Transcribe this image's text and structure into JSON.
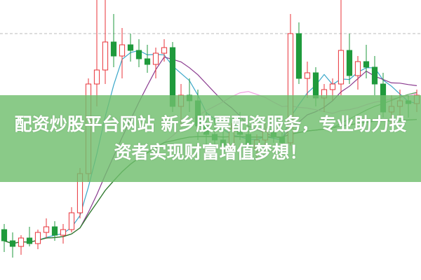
{
  "banner": {
    "text": "配资炒股平台网站 新乡股票配资服务，专业助力投资者实现财富增值梦想！"
  },
  "colors": {
    "up": "#e8333a",
    "down": "#1f9a3c",
    "banner": "#70be6e",
    "ma": [
      "#3aa7c9",
      "#8a3a8f",
      "#f0a0e0",
      "#5aa65a",
      "#2d7a2d"
    ],
    "grid": "#bbbbbb"
  },
  "chart_data": {
    "type": "candlestick",
    "title": "",
    "grid": "single dashed horizontal line",
    "moving_averages": [
      5,
      10,
      20,
      40,
      60
    ],
    "ylim": [
      0,
      100
    ],
    "candles": [
      [
        18,
        20,
        10,
        14
      ],
      [
        14,
        17,
        8,
        12
      ],
      [
        12,
        16,
        9,
        15
      ],
      [
        15,
        19,
        12,
        13
      ],
      [
        13,
        18,
        11,
        17
      ],
      [
        17,
        22,
        15,
        19
      ],
      [
        19,
        21,
        14,
        16
      ],
      [
        16,
        20,
        13,
        18
      ],
      [
        18,
        26,
        17,
        24
      ],
      [
        24,
        40,
        22,
        38
      ],
      [
        38,
        72,
        35,
        70
      ],
      [
        70,
        100,
        62,
        75
      ],
      [
        75,
        100,
        70,
        85
      ],
      [
        85,
        95,
        76,
        80
      ],
      [
        80,
        90,
        72,
        84
      ],
      [
        84,
        88,
        78,
        82
      ],
      [
        82,
        86,
        76,
        79
      ],
      [
        79,
        84,
        74,
        77
      ],
      [
        77,
        83,
        72,
        81
      ],
      [
        81,
        86,
        78,
        83
      ],
      [
        83,
        85,
        60,
        62
      ],
      [
        62,
        70,
        55,
        66
      ],
      [
        66,
        72,
        60,
        64
      ],
      [
        64,
        68,
        50,
        55
      ],
      [
        55,
        60,
        48,
        52
      ],
      [
        52,
        58,
        47,
        50
      ],
      [
        50,
        55,
        45,
        48
      ],
      [
        48,
        56,
        46,
        54
      ],
      [
        54,
        60,
        50,
        52
      ],
      [
        52,
        55,
        44,
        47
      ],
      [
        47,
        52,
        43,
        50
      ],
      [
        50,
        56,
        48,
        53
      ],
      [
        53,
        58,
        49,
        51
      ],
      [
        51,
        54,
        46,
        49
      ],
      [
        49,
        95,
        48,
        88
      ],
      [
        88,
        92,
        70,
        72
      ],
      [
        72,
        78,
        65,
        74
      ],
      [
        74,
        76,
        62,
        65
      ],
      [
        65,
        70,
        60,
        68
      ],
      [
        68,
        72,
        64,
        70
      ],
      [
        70,
        100,
        66,
        82
      ],
      [
        82,
        88,
        70,
        73
      ],
      [
        73,
        80,
        68,
        78
      ],
      [
        78,
        84,
        72,
        76
      ],
      [
        76,
        80,
        66,
        70
      ],
      [
        70,
        74,
        58,
        60
      ],
      [
        60,
        66,
        55,
        62
      ],
      [
        62,
        68,
        58,
        64
      ],
      [
        64,
        66,
        58,
        63
      ],
      [
        63,
        68,
        60,
        66
      ]
    ]
  }
}
